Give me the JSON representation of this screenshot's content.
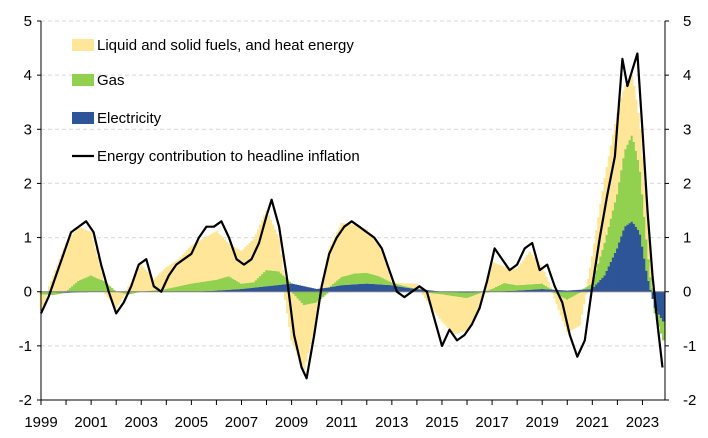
{
  "chart_data": {
    "type": "area",
    "title": "",
    "xlabel": "",
    "ylabel": "",
    "xlim": [
      1999,
      2023.9
    ],
    "ylim": [
      -2,
      5
    ],
    "y_ticks": [
      -2,
      -1,
      0,
      1,
      2,
      3,
      4,
      5
    ],
    "x_ticks": [
      1999,
      2001,
      2003,
      2005,
      2007,
      2009,
      2011,
      2013,
      2015,
      2017,
      2019,
      2021,
      2023
    ],
    "y_tick_labels": [
      "-2",
      "-1",
      "0",
      "1",
      "2",
      "3",
      "4",
      "5"
    ],
    "x_tick_labels": [
      "1999",
      "2001",
      "2003",
      "2005",
      "2007",
      "2009",
      "2011",
      "2013",
      "2015",
      "2017",
      "2019",
      "2021",
      "2023"
    ],
    "grid": "horizontal dashed",
    "legend_position": "top-left",
    "stacked": true,
    "series": [
      {
        "name": "Electricity",
        "kind": "stacked-bar",
        "color": "#2e5597",
        "points": [
          [
            1999.0,
            0.0
          ],
          [
            2000.0,
            -0.02
          ],
          [
            2001.0,
            0.0
          ],
          [
            2002.0,
            0.0
          ],
          [
            2003.0,
            0.0
          ],
          [
            2004.0,
            0.0
          ],
          [
            2005.0,
            0.0
          ],
          [
            2006.0,
            0.02
          ],
          [
            2007.0,
            0.05
          ],
          [
            2008.0,
            0.1
          ],
          [
            2009.0,
            0.15
          ],
          [
            2009.5,
            0.1
          ],
          [
            2010.0,
            0.05
          ],
          [
            2010.5,
            0.08
          ],
          [
            2011.0,
            0.12
          ],
          [
            2012.0,
            0.15
          ],
          [
            2013.0,
            0.12
          ],
          [
            2013.5,
            0.08
          ],
          [
            2014.0,
            0.05
          ],
          [
            2015.0,
            0.0
          ],
          [
            2016.0,
            -0.02
          ],
          [
            2017.0,
            0.0
          ],
          [
            2018.0,
            0.02
          ],
          [
            2019.0,
            0.05
          ],
          [
            2020.0,
            0.02
          ],
          [
            2021.0,
            0.05
          ],
          [
            2021.5,
            0.3
          ],
          [
            2022.0,
            0.8
          ],
          [
            2022.3,
            1.2
          ],
          [
            2022.6,
            1.3
          ],
          [
            2022.9,
            1.1
          ],
          [
            2023.2,
            0.3
          ],
          [
            2023.5,
            -0.3
          ],
          [
            2023.9,
            -0.6
          ]
        ]
      },
      {
        "name": "Gas",
        "kind": "stacked-bar",
        "color": "#92d050",
        "points": [
          [
            1999.0,
            -0.05
          ],
          [
            1999.5,
            -0.05
          ],
          [
            2000.0,
            0.0
          ],
          [
            2000.5,
            0.2
          ],
          [
            2001.0,
            0.3
          ],
          [
            2001.5,
            0.2
          ],
          [
            2002.0,
            0.0
          ],
          [
            2002.5,
            -0.05
          ],
          [
            2003.0,
            0.0
          ],
          [
            2004.0,
            0.05
          ],
          [
            2005.0,
            0.15
          ],
          [
            2006.0,
            0.2
          ],
          [
            2006.5,
            0.25
          ],
          [
            2007.0,
            0.1
          ],
          [
            2007.5,
            0.1
          ],
          [
            2008.0,
            0.3
          ],
          [
            2008.5,
            0.25
          ],
          [
            2009.0,
            0.0
          ],
          [
            2009.5,
            -0.25
          ],
          [
            2010.0,
            -0.2
          ],
          [
            2010.5,
            0.0
          ],
          [
            2011.0,
            0.15
          ],
          [
            2011.5,
            0.2
          ],
          [
            2012.0,
            0.2
          ],
          [
            2012.5,
            0.15
          ],
          [
            2013.0,
            0.05
          ],
          [
            2014.0,
            0.0
          ],
          [
            2015.0,
            -0.05
          ],
          [
            2016.0,
            -0.1
          ],
          [
            2017.0,
            0.05
          ],
          [
            2017.5,
            0.15
          ],
          [
            2018.0,
            0.1
          ],
          [
            2019.0,
            0.1
          ],
          [
            2020.0,
            -0.15
          ],
          [
            2021.0,
            0.1
          ],
          [
            2021.5,
            0.6
          ],
          [
            2022.0,
            1.0
          ],
          [
            2022.3,
            1.4
          ],
          [
            2022.6,
            1.6
          ],
          [
            2022.9,
            1.2
          ],
          [
            2023.2,
            0.5
          ],
          [
            2023.5,
            -0.1
          ],
          [
            2023.9,
            -0.4
          ]
        ]
      },
      {
        "name": "Liquid and solid fuels, and heat energy",
        "kind": "stacked-bar",
        "color": "#ffe699",
        "points": [
          [
            1999.0,
            -0.3
          ],
          [
            1999.5,
            0.3
          ],
          [
            2000.0,
            0.9
          ],
          [
            2000.5,
            1.0
          ],
          [
            2001.0,
            0.8
          ],
          [
            2001.5,
            0.0
          ],
          [
            2002.0,
            -0.3
          ],
          [
            2002.5,
            0.1
          ],
          [
            2003.0,
            0.5
          ],
          [
            2003.5,
            0.2
          ],
          [
            2004.0,
            0.4
          ],
          [
            2004.5,
            0.5
          ],
          [
            2005.0,
            0.7
          ],
          [
            2005.5,
            0.8
          ],
          [
            2006.0,
            0.9
          ],
          [
            2006.5,
            0.6
          ],
          [
            2007.0,
            0.6
          ],
          [
            2007.5,
            0.8
          ],
          [
            2008.0,
            1.1
          ],
          [
            2008.5,
            0.6
          ],
          [
            2009.0,
            -0.9
          ],
          [
            2009.5,
            -1.2
          ],
          [
            2010.0,
            -0.3
          ],
          [
            2010.5,
            0.7
          ],
          [
            2011.0,
            1.0
          ],
          [
            2011.5,
            0.9
          ],
          [
            2012.0,
            0.8
          ],
          [
            2012.5,
            0.6
          ],
          [
            2013.0,
            0.0
          ],
          [
            2014.0,
            0.1
          ],
          [
            2015.0,
            -0.5
          ],
          [
            2015.5,
            -0.7
          ],
          [
            2016.0,
            -0.6
          ],
          [
            2016.5,
            -0.3
          ],
          [
            2017.0,
            0.5
          ],
          [
            2017.5,
            0.3
          ],
          [
            2018.0,
            0.3
          ],
          [
            2018.5,
            0.6
          ],
          [
            2019.0,
            0.3
          ],
          [
            2019.5,
            -0.1
          ],
          [
            2020.0,
            -0.6
          ],
          [
            2020.5,
            -0.6
          ],
          [
            2021.0,
            0.5
          ],
          [
            2021.5,
            1.2
          ],
          [
            2022.0,
            1.5
          ],
          [
            2022.3,
            1.2
          ],
          [
            2022.6,
            1.1
          ],
          [
            2022.9,
            0.8
          ],
          [
            2023.2,
            0.5
          ],
          [
            2023.5,
            0.0
          ],
          [
            2023.9,
            0.0
          ]
        ]
      },
      {
        "name": "Energy contribution to headline inflation",
        "kind": "line",
        "color": "#000000",
        "points": [
          [
            1999.0,
            -0.4
          ],
          [
            1999.3,
            -0.1
          ],
          [
            1999.6,
            0.3
          ],
          [
            1999.9,
            0.7
          ],
          [
            2000.2,
            1.1
          ],
          [
            2000.5,
            1.2
          ],
          [
            2000.8,
            1.3
          ],
          [
            2001.1,
            1.1
          ],
          [
            2001.4,
            0.5
          ],
          [
            2001.7,
            0.0
          ],
          [
            2002.0,
            -0.4
          ],
          [
            2002.3,
            -0.2
          ],
          [
            2002.6,
            0.1
          ],
          [
            2002.9,
            0.5
          ],
          [
            2003.2,
            0.6
          ],
          [
            2003.5,
            0.1
          ],
          [
            2003.8,
            0.0
          ],
          [
            2004.1,
            0.3
          ],
          [
            2004.4,
            0.5
          ],
          [
            2004.7,
            0.6
          ],
          [
            2005.0,
            0.7
          ],
          [
            2005.3,
            1.0
          ],
          [
            2005.6,
            1.2
          ],
          [
            2005.9,
            1.2
          ],
          [
            2006.2,
            1.3
          ],
          [
            2006.5,
            1.0
          ],
          [
            2006.8,
            0.6
          ],
          [
            2007.1,
            0.5
          ],
          [
            2007.4,
            0.6
          ],
          [
            2007.7,
            0.9
          ],
          [
            2008.0,
            1.4
          ],
          [
            2008.2,
            1.7
          ],
          [
            2008.5,
            1.2
          ],
          [
            2008.8,
            0.3
          ],
          [
            2009.1,
            -0.8
          ],
          [
            2009.4,
            -1.4
          ],
          [
            2009.6,
            -1.6
          ],
          [
            2009.9,
            -0.8
          ],
          [
            2010.2,
            0.1
          ],
          [
            2010.5,
            0.7
          ],
          [
            2010.8,
            1.0
          ],
          [
            2011.1,
            1.2
          ],
          [
            2011.4,
            1.3
          ],
          [
            2011.7,
            1.2
          ],
          [
            2012.0,
            1.1
          ],
          [
            2012.3,
            1.0
          ],
          [
            2012.6,
            0.8
          ],
          [
            2012.9,
            0.4
          ],
          [
            2013.2,
            0.0
          ],
          [
            2013.5,
            -0.1
          ],
          [
            2013.8,
            0.0
          ],
          [
            2014.1,
            0.1
          ],
          [
            2014.4,
            0.0
          ],
          [
            2014.7,
            -0.5
          ],
          [
            2015.0,
            -1.0
          ],
          [
            2015.3,
            -0.7
          ],
          [
            2015.6,
            -0.9
          ],
          [
            2015.9,
            -0.8
          ],
          [
            2016.2,
            -0.6
          ],
          [
            2016.5,
            -0.3
          ],
          [
            2016.8,
            0.2
          ],
          [
            2017.1,
            0.8
          ],
          [
            2017.4,
            0.6
          ],
          [
            2017.7,
            0.4
          ],
          [
            2018.0,
            0.5
          ],
          [
            2018.3,
            0.8
          ],
          [
            2018.6,
            0.9
          ],
          [
            2018.9,
            0.4
          ],
          [
            2019.2,
            0.5
          ],
          [
            2019.5,
            0.1
          ],
          [
            2019.8,
            -0.2
          ],
          [
            2020.1,
            -0.8
          ],
          [
            2020.4,
            -1.2
          ],
          [
            2020.7,
            -0.9
          ],
          [
            2021.0,
            0.1
          ],
          [
            2021.3,
            1.0
          ],
          [
            2021.6,
            1.8
          ],
          [
            2021.9,
            2.5
          ],
          [
            2022.2,
            4.3
          ],
          [
            2022.4,
            3.8
          ],
          [
            2022.6,
            4.1
          ],
          [
            2022.8,
            4.4
          ],
          [
            2023.0,
            3.0
          ],
          [
            2023.2,
            1.5
          ],
          [
            2023.4,
            0.3
          ],
          [
            2023.6,
            -0.6
          ],
          [
            2023.8,
            -1.4
          ]
        ]
      }
    ]
  },
  "legend": [
    {
      "label": "Liquid and solid fuels, and heat energy",
      "color": "#ffe699",
      "kind": "box"
    },
    {
      "label": "Gas",
      "color": "#92d050",
      "kind": "box"
    },
    {
      "label": "Electricity",
      "color": "#2e5597",
      "kind": "box"
    },
    {
      "label": "Energy contribution to headline inflation",
      "color": "#000000",
      "kind": "line"
    }
  ],
  "colors": {
    "grid": "#d9d9d9",
    "axis": "#000000",
    "zero_line": "#7f7f7f"
  }
}
